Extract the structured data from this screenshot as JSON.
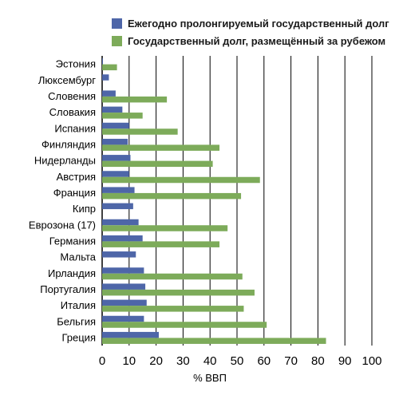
{
  "chart_data": {
    "type": "bar",
    "orientation": "horizontal",
    "categories": [
      "Эстония",
      "Люксембург",
      "Словения",
      "Словакия",
      "Испания",
      "Финляндия",
      "Нидерланды",
      "Австрия",
      "Франция",
      "Кипр",
      "Еврозона (17)",
      "Германия",
      "Мальта",
      "Ирландия",
      "Португалия",
      "Италия",
      "Бельгия",
      "Греция"
    ],
    "series": [
      {
        "name": "Ежегодно пролонгируемый государственный долг",
        "color": "#4e66a8",
        "values": [
          0.3,
          2.5,
          5,
          7.5,
          10,
          9.5,
          10.5,
          10,
          12,
          11.5,
          13.5,
          15,
          12.5,
          15.5,
          16,
          16.5,
          15.5,
          21
        ]
      },
      {
        "name": "Государственный долг, размещённый за рубежом",
        "color": "#7dab5a",
        "values": [
          5.5,
          0,
          24,
          15,
          28,
          43.5,
          41,
          58.5,
          51.5,
          0,
          46.5,
          43.5,
          0,
          52,
          56.5,
          52.5,
          61,
          83
        ]
      }
    ],
    "xlim": [
      0,
      100
    ],
    "xticks": [
      "0",
      "10",
      "20",
      "30",
      "40",
      "50",
      "60",
      "70",
      "80",
      "90",
      "100"
    ],
    "xlabel": "% ВВП",
    "ylabel": "",
    "grid": "vertical",
    "legend": "top-right"
  }
}
